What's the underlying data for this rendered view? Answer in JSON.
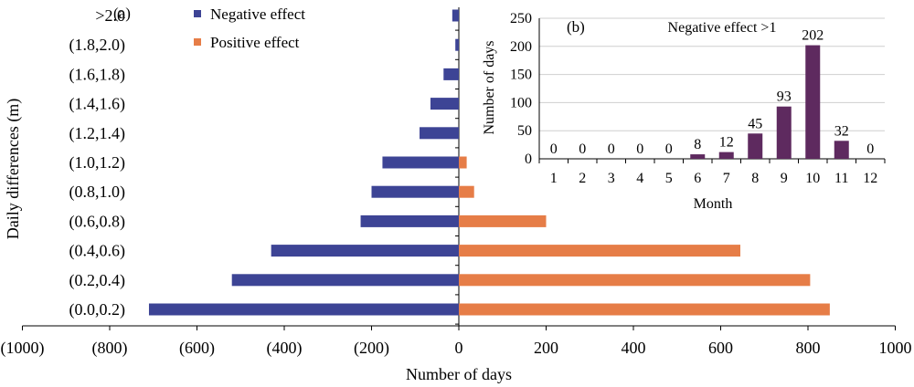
{
  "chart_data": [
    {
      "type": "bar",
      "orientation": "horizontal",
      "panel_label": "(a)",
      "categories": [
        "(0.0,0.2)",
        "(0.2,0.4)",
        "(0.4,0.6)",
        "(0.6,0.8)",
        "(0.8,1.0)",
        "(1.0,1.2)",
        "(1.2,1.4)",
        "(1.4,1.6)",
        "(1.6,1.8)",
        "(1.8,2.0)",
        ">2.0"
      ],
      "series": [
        {
          "name": "Negative effect",
          "color": "#3d4495",
          "values": [
            -710,
            -520,
            -430,
            -225,
            -200,
            -175,
            -90,
            -65,
            -35,
            -8,
            -15
          ]
        },
        {
          "name": "Positive effect",
          "color": "#e67d47",
          "values": [
            850,
            805,
            645,
            200,
            35,
            18,
            0,
            0,
            0,
            0,
            0
          ]
        }
      ],
      "xlabel": "Number of days",
      "ylabel": "Daily differences (m)",
      "xlim": [
        -1000,
        1000
      ],
      "xticks": [
        -1000,
        -800,
        -600,
        -400,
        -200,
        0,
        200,
        400,
        600,
        800,
        1000
      ],
      "xtick_labels": [
        "(1000)",
        "(800)",
        "(600)",
        "(400)",
        "(200)",
        "0",
        "200",
        "400",
        "600",
        "800",
        "1000"
      ],
      "legend_position": "top-left",
      "grid": false
    },
    {
      "type": "bar",
      "panel_label": "(b)",
      "title": "Negative effect >1",
      "categories": [
        "1",
        "2",
        "3",
        "4",
        "5",
        "6",
        "7",
        "8",
        "9",
        "10",
        "11",
        "12"
      ],
      "values": [
        0,
        0,
        0,
        0,
        0,
        8,
        12,
        45,
        93,
        202,
        32,
        0
      ],
      "data_labels": [
        "0",
        "0",
        "0",
        "0",
        "0",
        "8",
        "12",
        "45",
        "93",
        "202",
        "32",
        "0"
      ],
      "color": "#5e2a5f",
      "xlabel": "Month",
      "ylabel": "Number of days",
      "ylim": [
        0,
        250
      ],
      "yticks": [
        "0",
        "50",
        "100",
        "150",
        "200",
        "250"
      ],
      "grid": true
    }
  ]
}
